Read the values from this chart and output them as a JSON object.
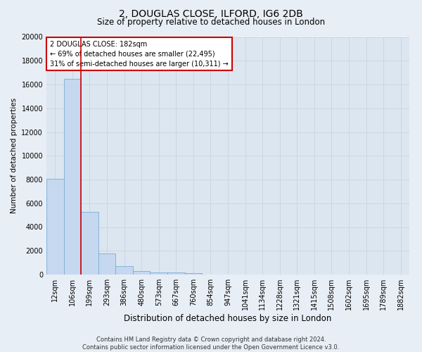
{
  "title": "2, DOUGLAS CLOSE, ILFORD, IG6 2DB",
  "subtitle": "Size of property relative to detached houses in London",
  "xlabel": "Distribution of detached houses by size in London",
  "ylabel": "Number of detached properties",
  "footer_line1": "Contains HM Land Registry data © Crown copyright and database right 2024.",
  "footer_line2": "Contains public sector information licensed under the Open Government Licence v3.0.",
  "bar_labels": [
    "12sqm",
    "106sqm",
    "199sqm",
    "293sqm",
    "386sqm",
    "480sqm",
    "573sqm",
    "667sqm",
    "760sqm",
    "854sqm",
    "947sqm",
    "1041sqm",
    "1134sqm",
    "1228sqm",
    "1321sqm",
    "1415sqm",
    "1508sqm",
    "1602sqm",
    "1695sqm",
    "1789sqm",
    "1882sqm"
  ],
  "bar_values": [
    8050,
    16500,
    5300,
    1750,
    700,
    320,
    200,
    160,
    130,
    0,
    0,
    0,
    0,
    0,
    0,
    0,
    0,
    0,
    0,
    0,
    0
  ],
  "bar_color": "#c5d8ef",
  "bar_edge_color": "#7aadd4",
  "red_line_x": 1.48,
  "annotation_text": "2 DOUGLAS CLOSE: 182sqm\n← 69% of detached houses are smaller (22,495)\n31% of semi-detached houses are larger (10,311) →",
  "annotation_box_color": "#ffffff",
  "annotation_box_edge_color": "#cc0000",
  "ylim": [
    0,
    20000
  ],
  "yticks": [
    0,
    2000,
    4000,
    6000,
    8000,
    10000,
    12000,
    14000,
    16000,
    18000,
    20000
  ],
  "grid_color": "#c8d4e0",
  "background_color": "#e8eef5",
  "axes_bg_color": "#dce6f0",
  "title_fontsize": 10,
  "subtitle_fontsize": 8.5,
  "ylabel_fontsize": 7.5,
  "xlabel_fontsize": 8.5,
  "tick_fontsize": 7,
  "annotation_fontsize": 7,
  "footer_fontsize": 6
}
